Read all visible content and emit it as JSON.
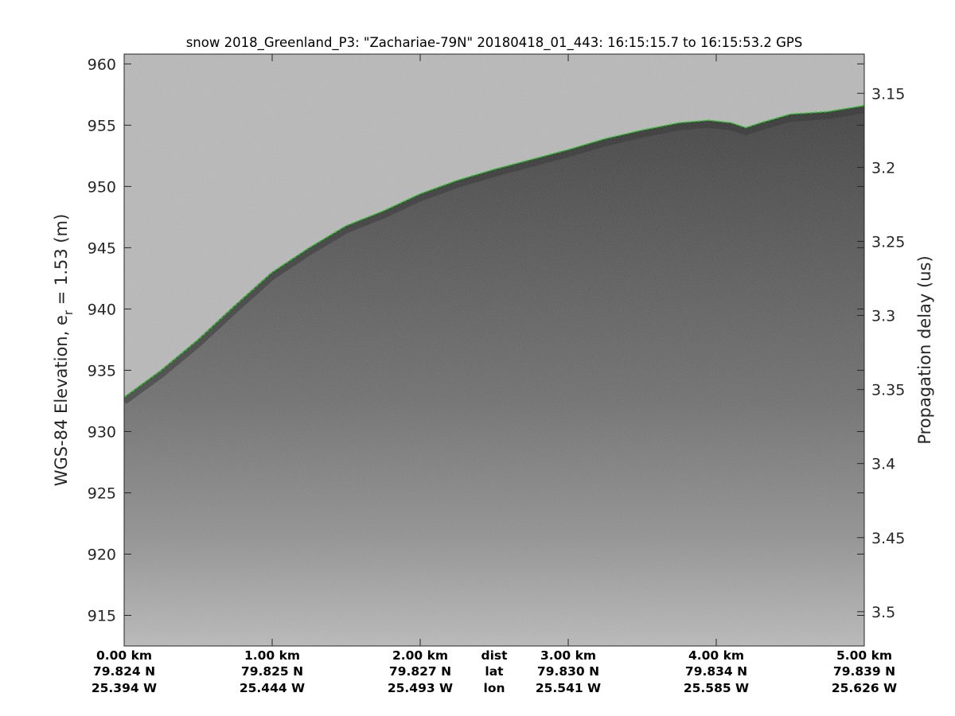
{
  "chart_data": {
    "type": "radar-echogram",
    "title": "snow 2018_Greenland_P3: \"Zachariae-79N\"  20180418_01_443: 16:15:15.7 to 16:15:53.2 GPS",
    "ylabel_left": "WGS-84 Elevation, e",
    "ylabel_left_sub": "r",
    "ylabel_left_tail": " = 1.53 (m)",
    "ylabel_right": "Propagation delay (us)",
    "ylim_left": [
      912.5,
      960.8
    ],
    "y_ticks_left": [
      960,
      955,
      950,
      945,
      940,
      935,
      930,
      925,
      920,
      915
    ],
    "y_tick_labels_left": [
      "960",
      "955",
      "950",
      "945",
      "940",
      "935",
      "930",
      "925",
      "920",
      "915"
    ],
    "y_ticks_right": [
      3.15,
      3.2,
      3.25,
      3.3,
      3.35,
      3.4,
      3.45,
      3.5
    ],
    "y_tick_labels_right": [
      "3.15",
      "3.2",
      "3.25",
      "3.3",
      "3.35",
      "3.4",
      "3.45",
      "3.5"
    ],
    "right_axis_mapping": {
      "elevation_at_3_15us": 957.6,
      "elevation_at_3_5us": 915.3
    },
    "xlim_km": [
      0,
      5
    ],
    "x_ticks_km": [
      0,
      1,
      2,
      3,
      4,
      5
    ],
    "x_tick_rows": {
      "dist": [
        "0.00 km",
        "1.00 km",
        "2.00 km",
        "3.00 km",
        "4.00 km",
        "5.00 km"
      ],
      "lat": [
        "79.824 N",
        "79.825 N",
        "79.827 N",
        "79.830 N",
        "79.834 N",
        "79.839 N"
      ],
      "lon": [
        "25.394 W",
        "25.444 W",
        "25.493 W",
        "25.541 W",
        "25.585 W",
        "25.626 W"
      ]
    },
    "row_labels": {
      "dist": "dist",
      "lat": "lat",
      "lon": "lon"
    },
    "row_labels_position_km": 2.5,
    "surface_layer": {
      "name": "surface",
      "color": "#22cc22",
      "style": "dashed",
      "x_km": [
        0,
        0.25,
        0.5,
        0.75,
        1.0,
        1.25,
        1.5,
        1.75,
        2.0,
        2.25,
        2.5,
        2.75,
        3.0,
        3.25,
        3.5,
        3.75,
        3.95,
        4.1,
        4.2,
        4.3,
        4.5,
        4.75,
        5.0
      ],
      "elevation_m": [
        932.8,
        935.0,
        937.5,
        940.3,
        943.0,
        945.0,
        946.8,
        948.0,
        949.4,
        950.5,
        951.4,
        952.2,
        953.0,
        953.9,
        954.6,
        955.2,
        955.4,
        955.2,
        954.8,
        955.2,
        955.9,
        956.1,
        956.6
      ]
    },
    "colors": {
      "air": "#b9b9b9",
      "surface_dark": "#3a3a3a",
      "deep": "#7a7a7a",
      "bottom": "#bdbdbd",
      "layer": "#22cc22"
    },
    "grid": false
  }
}
